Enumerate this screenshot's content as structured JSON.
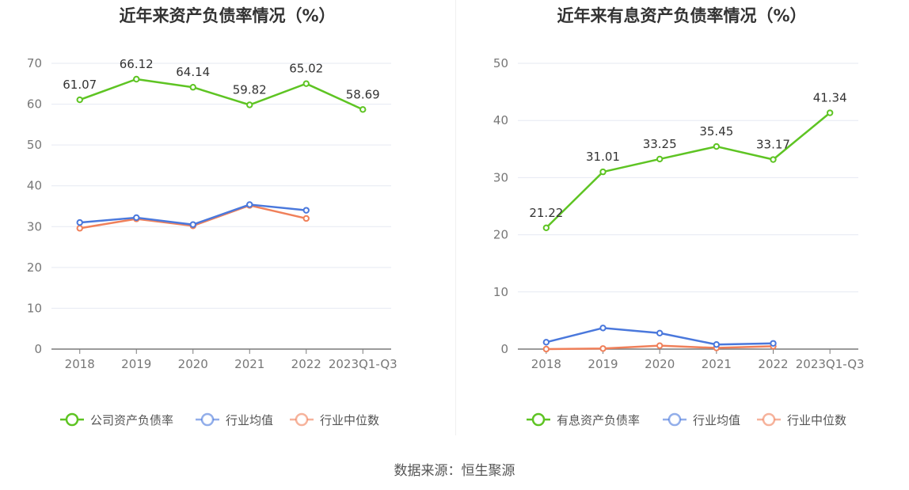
{
  "charts": [
    {
      "title": "近年来资产负债率情况（%）",
      "chart_data": {
        "type": "line",
        "title": "近年来资产负债率情况（%）",
        "categories": [
          "2018",
          "2019",
          "2020",
          "2021",
          "2022",
          "2023Q1-Q3"
        ],
        "ylim": [
          0,
          70
        ],
        "yticks": [
          0,
          10,
          20,
          30,
          40,
          50,
          60,
          70
        ],
        "grid": true,
        "legend_position": "bottom",
        "series": [
          {
            "name": "公司资产负债率",
            "color": "#5ec423",
            "values": [
              61.07,
              66.12,
              64.14,
              59.82,
              65.02,
              58.69
            ],
            "labels": true
          },
          {
            "name": "行业均值",
            "color": "#4a78dc",
            "values": [
              31.0,
              32.2,
              30.5,
              35.4,
              34.0,
              null
            ],
            "labels": false
          },
          {
            "name": "行业中位数",
            "color": "#f0805a",
            "values": [
              29.6,
              31.9,
              30.2,
              35.2,
              32.0,
              null
            ],
            "labels": false
          }
        ]
      }
    },
    {
      "title": "近年来有息资产负债率情况（%）",
      "chart_data": {
        "type": "line",
        "title": "近年来有息资产负债率情况（%）",
        "categories": [
          "2018",
          "2019",
          "2020",
          "2021",
          "2022",
          "2023Q1-Q3"
        ],
        "ylim": [
          0,
          50
        ],
        "yticks": [
          0,
          10,
          20,
          30,
          40,
          50
        ],
        "grid": true,
        "legend_position": "bottom",
        "series": [
          {
            "name": "有息资产负债率",
            "color": "#5ec423",
            "values": [
              21.22,
              31.01,
              33.25,
              35.45,
              33.17,
              41.34
            ],
            "labels": true
          },
          {
            "name": "行业均值",
            "color": "#4a78dc",
            "values": [
              1.2,
              3.7,
              2.8,
              0.8,
              1.0,
              null
            ],
            "labels": false
          },
          {
            "name": "行业中位数",
            "color": "#f0805a",
            "values": [
              0.0,
              0.1,
              0.6,
              0.2,
              0.5,
              null
            ],
            "labels": false
          }
        ]
      }
    }
  ],
  "source": "数据来源：恒生聚源"
}
